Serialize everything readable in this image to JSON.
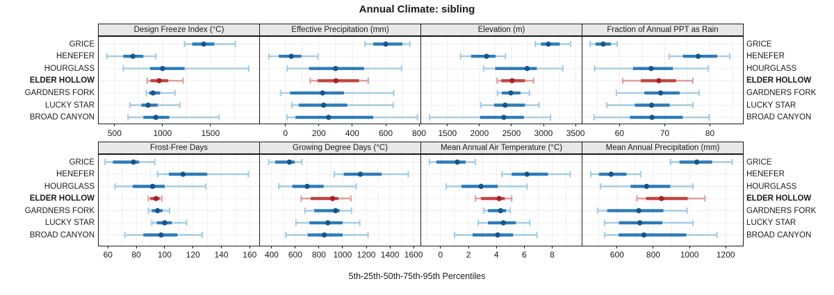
{
  "title": "Annual Climate: sibling",
  "caption": "5th-25th-50th-75th-95th Percentiles",
  "percentile_labels": [
    "5th",
    "25th",
    "50th",
    "75th",
    "95th"
  ],
  "sites": [
    "GRICE",
    "HENEFER",
    "HOURGLASS",
    "ELDER HOLLOW",
    "GARDNERS FORK",
    "LUCKY STAR",
    "BROAD CANYON"
  ],
  "highlight_site": "ELDER HOLLOW",
  "colors": {
    "blue_light": "#a3cbe1",
    "blue_mid": "#2e7bb8",
    "blue_dot": "#17548c",
    "red_light": "#dc9c9c",
    "red_mid": "#bf4540",
    "red_dot": "#ab1f28",
    "grid": "#c9c9c9",
    "panel_border": "#1a1a1a",
    "strip_bg": "#e8e8e8",
    "text": "#1a1a1a"
  },
  "chart_data": [
    {
      "type": "dotplot-percentile",
      "panel_title": "Design Freeze Index (°C)",
      "grid_row": 0,
      "grid_col": 0,
      "xlim": [
        334,
        2009
      ],
      "ticks": [
        500,
        1000,
        1500
      ],
      "minor_step": 250,
      "series": [
        {
          "site": "GRICE",
          "percentiles": [
            1230,
            1310,
            1430,
            1540,
            1760
          ]
        },
        {
          "site": "HENEFER",
          "percentiles": [
            420,
            590,
            690,
            800,
            930
          ]
        },
        {
          "site": "HOURGLASS",
          "percentiles": [
            590,
            870,
            1000,
            1230,
            1900
          ]
        },
        {
          "site": "ELDER HOLLOW",
          "percentiles": [
            840,
            875,
            965,
            1060,
            1215
          ]
        },
        {
          "site": "GARDNERS FORK",
          "percentiles": [
            830,
            860,
            900,
            975,
            1130
          ]
        },
        {
          "site": "LUCKY STAR",
          "percentiles": [
            660,
            780,
            850,
            950,
            1180
          ]
        },
        {
          "site": "BROAD CANYON",
          "percentiles": [
            640,
            800,
            930,
            1070,
            1590
          ]
        }
      ]
    },
    {
      "type": "dotplot-percentile",
      "panel_title": "Effective Precipitation (mm)",
      "grid_row": 0,
      "grid_col": 1,
      "xlim": [
        -153,
        808
      ],
      "ticks": [
        0,
        200,
        400,
        600,
        800
      ],
      "minor_step": 100,
      "series": [
        {
          "site": "GRICE",
          "percentiles": [
            475,
            525,
            600,
            700,
            745
          ]
        },
        {
          "site": "HENEFER",
          "percentiles": [
            -100,
            -40,
            35,
            95,
            195
          ]
        },
        {
          "site": "HOURGLASS",
          "percentiles": [
            10,
            140,
            300,
            470,
            695
          ]
        },
        {
          "site": "ELDER HOLLOW",
          "percentiles": [
            148,
            192,
            302,
            440,
            495
          ]
        },
        {
          "site": "GARDNERS FORK",
          "percentiles": [
            -30,
            28,
            222,
            350,
            648
          ]
        },
        {
          "site": "LUCKY STAR",
          "percentiles": [
            38,
            80,
            228,
            370,
            645
          ]
        },
        {
          "site": "BROAD CANYON",
          "percentiles": [
            10,
            60,
            258,
            525,
            790
          ]
        }
      ]
    },
    {
      "type": "dotplot-percentile",
      "panel_title": "Elevation (m)",
      "grid_row": 0,
      "grid_col": 2,
      "xlim": [
        1089,
        3597
      ],
      "ticks": [
        1500,
        2000,
        2500,
        3000,
        3500
      ],
      "minor_step": 250,
      "series": [
        {
          "site": "GRICE",
          "percentiles": [
            2870,
            2960,
            3075,
            3255,
            3425
          ]
        },
        {
          "site": "HENEFER",
          "percentiles": [
            1705,
            1870,
            2110,
            2250,
            2405
          ]
        },
        {
          "site": "HOURGLASS",
          "percentiles": [
            2065,
            2245,
            2745,
            2895,
            3300
          ]
        },
        {
          "site": "ELDER HOLLOW",
          "percentiles": [
            2275,
            2340,
            2510,
            2710,
            2845
          ]
        },
        {
          "site": "GARDNERS FORK",
          "percentiles": [
            2280,
            2350,
            2490,
            2640,
            2780
          ]
        },
        {
          "site": "LUCKY STAR",
          "percentiles": [
            2020,
            2230,
            2400,
            2710,
            2930
          ]
        },
        {
          "site": "BROAD CANYON",
          "percentiles": [
            1220,
            2010,
            2380,
            2695,
            3110
          ]
        }
      ]
    },
    {
      "type": "dotplot-percentile",
      "panel_title": "Fraction of Annual PPT as Rain",
      "grid_row": 0,
      "grid_col": 3,
      "xlim": [
        51.8,
        87.3
      ],
      "ticks": [
        60,
        70,
        80
      ],
      "minor_step": 5,
      "series": [
        {
          "site": "GRICE",
          "percentiles": [
            53.5,
            54.7,
            56.4,
            58.1,
            59.5
          ]
        },
        {
          "site": "HENEFER",
          "percentiles": [
            71,
            74,
            77.4,
            81.6,
            84.4
          ]
        },
        {
          "site": "HOURGLASS",
          "percentiles": [
            54.5,
            63,
            67,
            71.8,
            79.6
          ]
        },
        {
          "site": "ELDER HOLLOW",
          "percentiles": [
            60.7,
            64.7,
            68.7,
            72.5,
            76.2
          ]
        },
        {
          "site": "GARDNERS FORK",
          "percentiles": [
            59.3,
            65.5,
            69.1,
            73.3,
            77.6
          ]
        },
        {
          "site": "LUCKY STAR",
          "percentiles": [
            57.2,
            63.4,
            67.1,
            71.1,
            76.2
          ]
        },
        {
          "site": "BROAD CANYON",
          "percentiles": [
            54.4,
            62.3,
            67.2,
            74.0,
            79.8
          ]
        }
      ]
    },
    {
      "type": "dotplot-percentile",
      "panel_title": "Frost-Free Days",
      "grid_row": 1,
      "grid_col": 0,
      "xlim": [
        53.5,
        166.7
      ],
      "ticks": [
        60,
        80,
        100,
        120,
        140,
        160
      ],
      "minor_step": 10,
      "series": [
        {
          "site": "GRICE",
          "percentiles": [
            58,
            63.5,
            78,
            82,
            93
          ]
        },
        {
          "site": "HENEFER",
          "percentiles": [
            95,
            103,
            113,
            130,
            159
          ]
        },
        {
          "site": "HOURGLASS",
          "percentiles": [
            65,
            77.5,
            91.5,
            100,
            129
          ]
        },
        {
          "site": "ELDER HOLLOW",
          "percentiles": [
            88.5,
            90,
            94,
            96.5,
            98
          ]
        },
        {
          "site": "GARDNERS FORK",
          "percentiles": [
            88.5,
            91,
            95,
            98.5,
            103.5
          ]
        },
        {
          "site": "LUCKY STAR",
          "percentiles": [
            91,
            94.5,
            100,
            105,
            115.5
          ]
        },
        {
          "site": "BROAD CANYON",
          "percentiles": [
            72,
            85,
            97.5,
            109,
            126.5
          ]
        }
      ]
    },
    {
      "type": "dotplot-percentile",
      "panel_title": "Growing Degree Days (°C)",
      "grid_row": 1,
      "grid_col": 1,
      "xlim": [
        301,
        1658
      ],
      "ticks": [
        400,
        600,
        800,
        1000,
        1200,
        1400,
        1600
      ],
      "minor_step": 100,
      "series": [
        {
          "site": "GRICE",
          "percentiles": [
            375,
            430,
            550,
            595,
            655
          ]
        },
        {
          "site": "HENEFER",
          "percentiles": [
            930,
            1010,
            1150,
            1330,
            1555
          ]
        },
        {
          "site": "HOURGLASS",
          "percentiles": [
            460,
            575,
            700,
            840,
            1115
          ]
        },
        {
          "site": "ELDER HOLLOW",
          "percentiles": [
            650,
            730,
            915,
            965,
            1070
          ]
        },
        {
          "site": "GARDNERS FORK",
          "percentiles": [
            680,
            760,
            940,
            975,
            1075
          ]
        },
        {
          "site": "LUCKY STAR",
          "percentiles": [
            605,
            720,
            875,
            1000,
            1145
          ]
        },
        {
          "site": "BROAD CANYON",
          "percentiles": [
            520,
            705,
            845,
            1000,
            1215
          ]
        }
      ]
    },
    {
      "type": "dotplot-percentile",
      "panel_title": "Mean Annual Air Temperature (°C)",
      "grid_row": 1,
      "grid_col": 2,
      "xlim": [
        -1.39,
        10.12
      ],
      "ticks": [
        0,
        2,
        4,
        6,
        8
      ],
      "minor_step": 1,
      "series": [
        {
          "site": "GRICE",
          "percentiles": [
            -0.8,
            -0.3,
            1.2,
            1.8,
            2.5
          ]
        },
        {
          "site": "HENEFER",
          "percentiles": [
            4.4,
            5.1,
            6.2,
            7.7,
            9.3
          ]
        },
        {
          "site": "HOURGLASS",
          "percentiles": [
            0.4,
            1.5,
            2.9,
            4.1,
            6.2
          ]
        },
        {
          "site": "ELDER HOLLOW",
          "percentiles": [
            2.5,
            2.9,
            4.2,
            4.6,
            5.1
          ]
        },
        {
          "site": "GARDNERS FORK",
          "percentiles": [
            3.1,
            3.4,
            4.3,
            4.7,
            5.0
          ]
        },
        {
          "site": "LUCKY STAR",
          "percentiles": [
            2.7,
            3.4,
            4.5,
            5.4,
            6.4
          ]
        },
        {
          "site": "BROAD CANYON",
          "percentiles": [
            1.0,
            2.3,
            4.1,
            5.2,
            6.9
          ]
        }
      ]
    },
    {
      "type": "dotplot-percentile",
      "panel_title": "Mean Annual Precipitation (mm)",
      "grid_row": 1,
      "grid_col": 3,
      "xlim": [
        409,
        1295
      ],
      "ticks": [
        600,
        800,
        1000,
        1200
      ],
      "minor_step": 100,
      "series": [
        {
          "site": "GRICE",
          "percentiles": [
            895,
            945,
            1040,
            1125,
            1235
          ]
        },
        {
          "site": "HENEFER",
          "percentiles": [
            455,
            500,
            567,
            652,
            731
          ]
        },
        {
          "site": "HOURGLASS",
          "percentiles": [
            509,
            675,
            763,
            894,
            1019
          ]
        },
        {
          "site": "ELDER HOLLOW",
          "percentiles": [
            710,
            760,
            845,
            990,
            1085
          ]
        },
        {
          "site": "GARDNERS FORK",
          "percentiles": [
            493,
            546,
            720,
            856,
            987
          ]
        },
        {
          "site": "LUCKY STAR",
          "percentiles": [
            531,
            611,
            726,
            850,
            1019
          ]
        },
        {
          "site": "BROAD CANYON",
          "percentiles": [
            531,
            608,
            748,
            983,
            1151
          ]
        }
      ]
    }
  ]
}
